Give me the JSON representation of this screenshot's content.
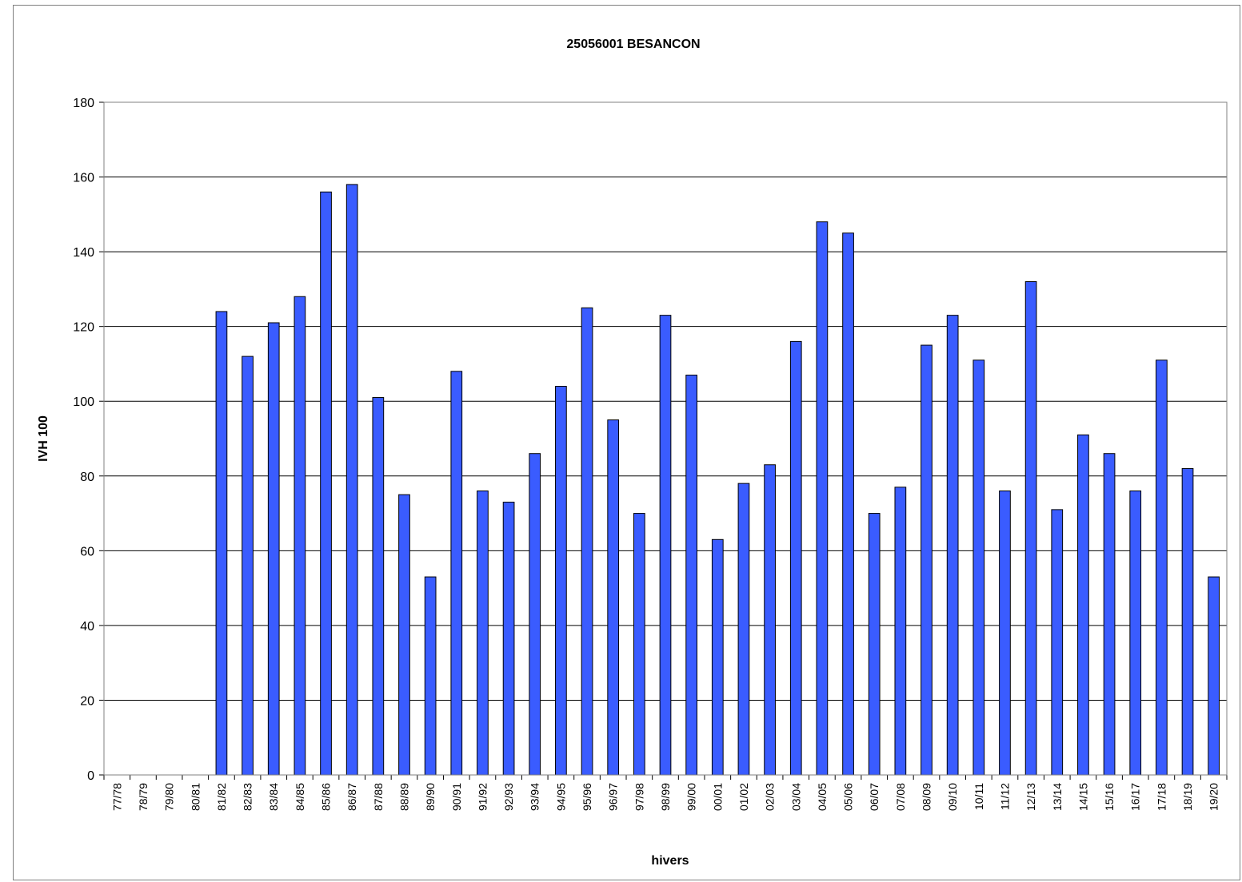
{
  "chart_data": {
    "type": "bar",
    "title": "25056001 BESANCON",
    "xlabel": "hivers",
    "ylabel": "IVH 100",
    "ylim": [
      0,
      180
    ],
    "yticks": [
      0,
      20,
      40,
      60,
      80,
      100,
      120,
      140,
      160,
      180
    ],
    "grid": true,
    "legend": "none",
    "bar_color": "#3a5cff",
    "categories": [
      "77/78",
      "78/79",
      "79/80",
      "80/81",
      "81/82",
      "82/83",
      "83/84",
      "84/85",
      "85/86",
      "86/87",
      "87/88",
      "88/89",
      "89/90",
      "90/91",
      "91/92",
      "92/93",
      "93/94",
      "94/95",
      "95/96",
      "96/97",
      "97/98",
      "98/99",
      "99/00",
      "00/01",
      "01/02",
      "02/03",
      "03/04",
      "04/05",
      "05/06",
      "06/07",
      "07/08",
      "08/09",
      "09/10",
      "10/11",
      "11/12",
      "12/13",
      "13/14",
      "14/15",
      "15/16",
      "16/17",
      "17/18",
      "18/19",
      "19/20"
    ],
    "values": [
      0,
      0,
      0,
      0,
      124,
      112,
      121,
      128,
      156,
      158,
      101,
      75,
      53,
      108,
      76,
      73,
      86,
      104,
      125,
      95,
      70,
      123,
      107,
      63,
      78,
      83,
      116,
      148,
      145,
      70,
      77,
      115,
      123,
      111,
      76,
      132,
      71,
      91,
      86,
      76,
      111,
      82,
      53
    ]
  }
}
